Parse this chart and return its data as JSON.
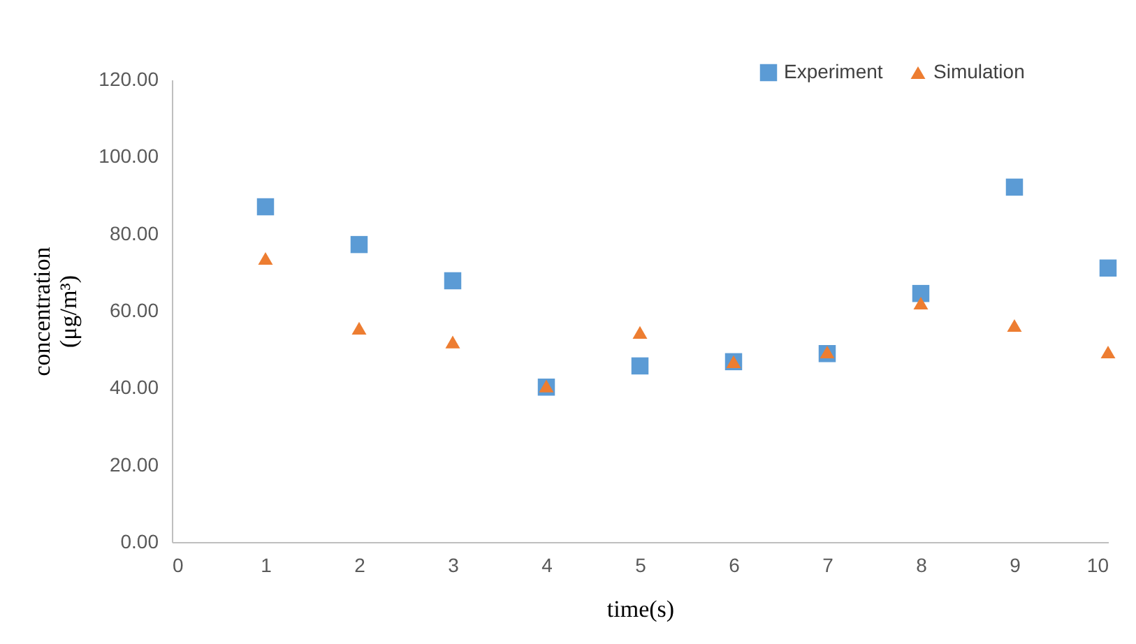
{
  "chart_data": {
    "type": "scatter",
    "xlabel": "time(s)",
    "ylabel": "concentration (μg/m³)",
    "x": [
      1,
      2,
      3,
      4,
      5,
      6,
      7,
      8,
      9,
      10
    ],
    "series": [
      {
        "name": "Experiment",
        "color": "#5b9bd5",
        "marker": "square",
        "values": [
          87.0,
          77.2,
          67.8,
          40.2,
          45.7,
          46.8,
          48.9,
          64.5,
          92.1,
          71.1
        ]
      },
      {
        "name": "Simulation",
        "color": "#ed7d31",
        "marker": "triangle",
        "values": [
          73.6,
          55.5,
          51.9,
          40.5,
          54.4,
          46.8,
          49.3,
          62.0,
          56.2,
          49.3
        ]
      }
    ],
    "xlim": [
      0,
      10
    ],
    "xticks": [
      0,
      1,
      2,
      3,
      4,
      5,
      6,
      7,
      8,
      9,
      10
    ],
    "ylim": [
      0,
      120
    ],
    "yticks": [
      {
        "value": 0,
        "label": "0.00"
      },
      {
        "value": 20,
        "label": "20.00"
      },
      {
        "value": 40,
        "label": "40.00"
      },
      {
        "value": 60,
        "label": "60.00"
      },
      {
        "value": 80,
        "label": "80.00"
      },
      {
        "value": 100,
        "label": "100.00"
      },
      {
        "value": 120,
        "label": "120.00"
      }
    ],
    "grid": false,
    "legend": "top right"
  }
}
